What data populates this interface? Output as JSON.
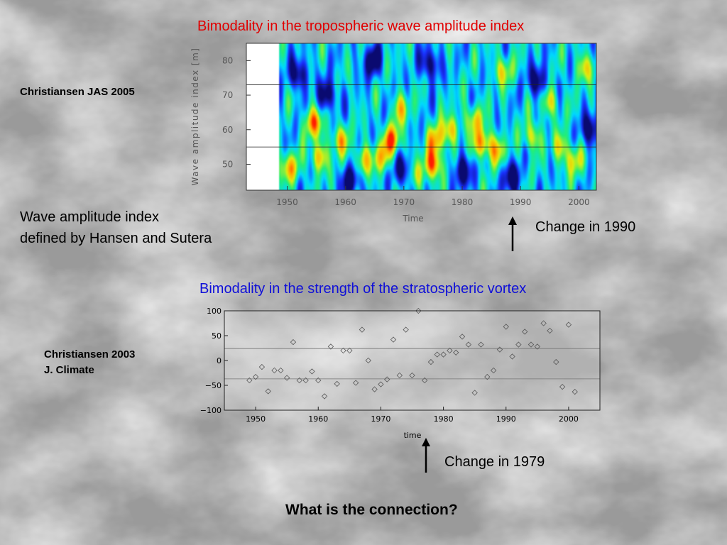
{
  "slide": {
    "title_top": "Bimodality in the tropospheric wave amplitude index",
    "ref_top": "Christiansen JAS 2005",
    "note_top": [
      "Wave amplitude index",
      "defined by Hansen and Sutera"
    ],
    "change_top": "Change in 1990",
    "title_bottom": "Bimodality in the strength of the stratospheric vortex",
    "ref_bottom": [
      "Christiansen 2003",
      "J. Climate"
    ],
    "change_bottom": "Change in 1979",
    "question": "What is the connection?"
  },
  "chart_data": [
    {
      "type": "heatmap",
      "xlabel": "Time",
      "ylabel": "Wave amplitude index [m]",
      "xlim": [
        1943,
        2003
      ],
      "ylim": [
        42.5,
        85
      ],
      "xticks": [
        1950,
        1960,
        1970,
        1980,
        1990,
        2000
      ],
      "yticks": [
        50,
        60,
        70,
        80
      ],
      "data_start": 1948.5,
      "reference_lines": [
        55,
        73
      ],
      "colormap": [
        "#0a0a70",
        "#1a32ff",
        "#00d8ff",
        "#22ee77",
        "#ddee10",
        "#ffaa00",
        "#ff1a00"
      ],
      "hotspots": [
        {
          "x": 1950.5,
          "y": 49,
          "v": 0.7
        },
        {
          "x": 1954.5,
          "y": 62,
          "v": 0.85
        },
        {
          "x": 1955.5,
          "y": 52,
          "v": 0.7
        },
        {
          "x": 1959,
          "y": 57,
          "v": 0.65
        },
        {
          "x": 1963,
          "y": 51,
          "v": 0.6
        },
        {
          "x": 1966,
          "y": 52,
          "v": 0.6
        },
        {
          "x": 1968,
          "y": 57,
          "v": 0.9
        },
        {
          "x": 1969.5,
          "y": 66,
          "v": 0.55
        },
        {
          "x": 1972,
          "y": 47,
          "v": 0.5
        },
        {
          "x": 1975,
          "y": 50,
          "v": 1.0
        },
        {
          "x": 1975.5,
          "y": 57,
          "v": 0.7
        },
        {
          "x": 1978,
          "y": 60,
          "v": 0.65
        },
        {
          "x": 1982,
          "y": 63,
          "v": 0.6
        },
        {
          "x": 1983.5,
          "y": 56,
          "v": 0.85
        },
        {
          "x": 1986,
          "y": 54,
          "v": 0.6
        },
        {
          "x": 1987,
          "y": 77,
          "v": 0.55
        },
        {
          "x": 1992,
          "y": 58,
          "v": 0.6
        },
        {
          "x": 1995,
          "y": 68,
          "v": 0.55
        },
        {
          "x": 1997,
          "y": 55,
          "v": 0.5
        },
        {
          "x": 1999,
          "y": 51,
          "v": 0.55
        },
        {
          "x": 2001,
          "y": 78,
          "v": 0.55
        }
      ],
      "coldspots": [
        {
          "x": 1952,
          "y": 76
        },
        {
          "x": 1957,
          "y": 70
        },
        {
          "x": 1961,
          "y": 45
        },
        {
          "x": 1964.5,
          "y": 80
        },
        {
          "x": 1970,
          "y": 48
        },
        {
          "x": 1974.5,
          "y": 79
        },
        {
          "x": 1980,
          "y": 48
        },
        {
          "x": 1988.5,
          "y": 46
        },
        {
          "x": 1993,
          "y": 74
        },
        {
          "x": 2002,
          "y": 60
        }
      ]
    },
    {
      "type": "scatter",
      "xlabel": "time",
      "ylabel": "",
      "xlim": [
        1945,
        2005
      ],
      "ylim": [
        -100,
        100
      ],
      "xticks": [
        1950,
        1960,
        1970,
        1980,
        1990,
        2000
      ],
      "yticks": [
        -100,
        -50,
        0,
        50,
        100
      ],
      "reference_lines": [
        24,
        -37
      ],
      "marker": "diamond",
      "x": [
        1949,
        1950,
        1951,
        1952,
        1953,
        1954,
        1955,
        1956,
        1957,
        1958,
        1959,
        1960,
        1961,
        1962,
        1963,
        1964,
        1965,
        1966,
        1967,
        1968,
        1969,
        1970,
        1971,
        1972,
        1973,
        1974,
        1975,
        1976,
        1977,
        1978,
        1979,
        1980,
        1981,
        1982,
        1983,
        1984,
        1985,
        1986,
        1987,
        1988,
        1989,
        1990,
        1991,
        1992,
        1993,
        1994,
        1995,
        1996,
        1997,
        1998,
        1999,
        2000,
        2001
      ],
      "y": [
        -40,
        -33,
        -13,
        -62,
        -20,
        -20,
        -35,
        37,
        -40,
        -40,
        -22,
        -40,
        -72,
        28,
        -47,
        20,
        20,
        -45,
        62,
        0,
        -58,
        -48,
        -38,
        42,
        -30,
        62,
        -30,
        100,
        -40,
        -3,
        12,
        12,
        20,
        16,
        48,
        32,
        -65,
        32,
        -33,
        -20,
        22,
        68,
        8,
        32,
        58,
        32,
        28,
        75,
        60,
        -3,
        -53,
        72,
        -63
      ]
    }
  ]
}
